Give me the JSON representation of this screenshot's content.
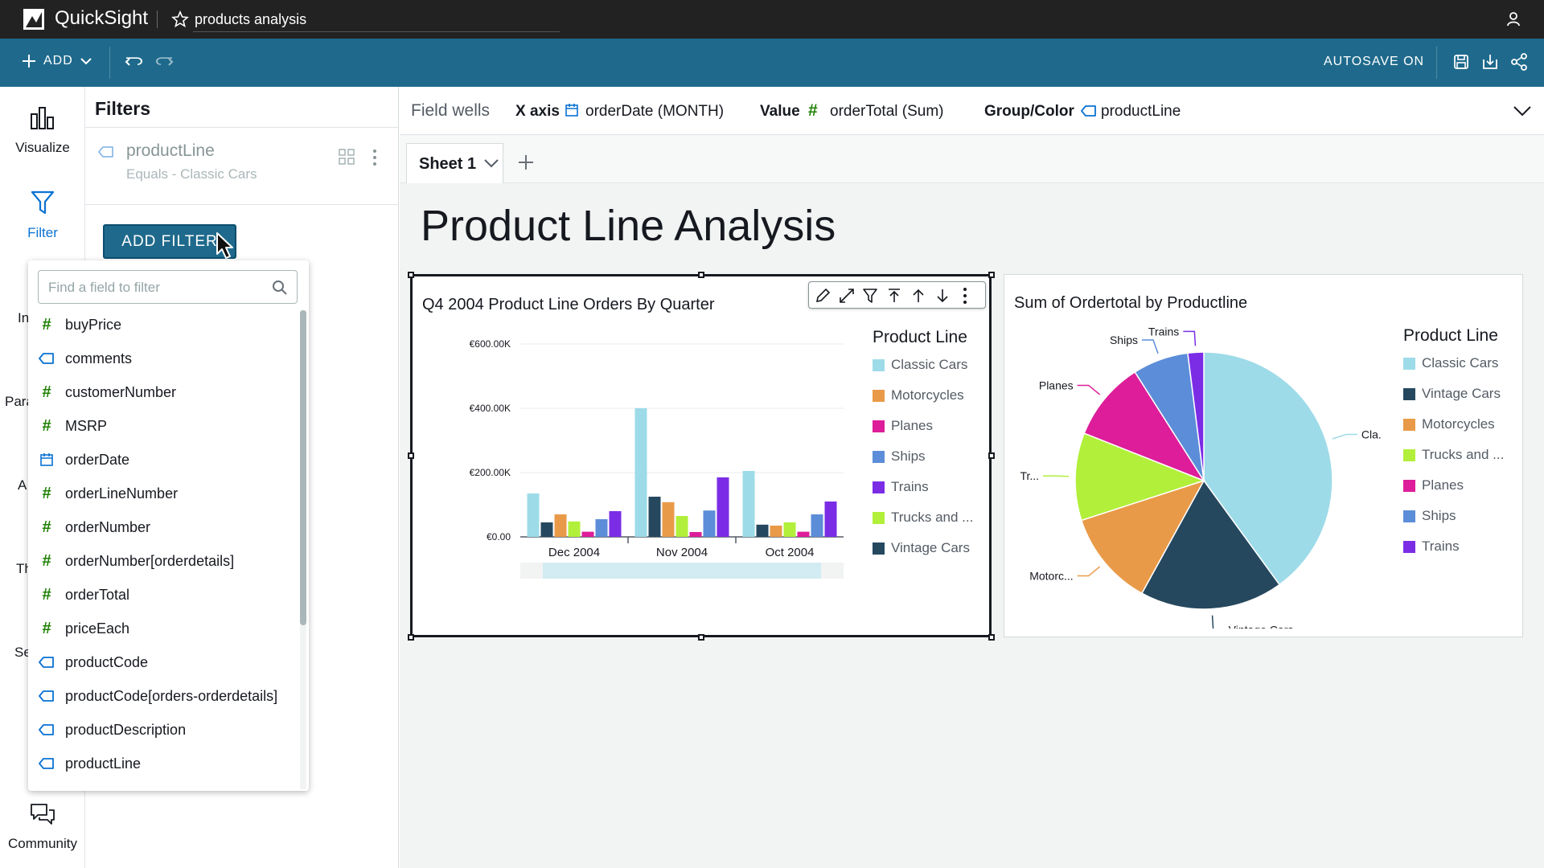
{
  "topbar": {
    "brand": "QuickSight",
    "analysis_name": "products analysis"
  },
  "toolbar": {
    "add_label": "ADD",
    "autosave_label": "AUTOSAVE ON"
  },
  "rail": {
    "visualize": "Visualize",
    "filter": "Filter",
    "partial_labels": [
      "In",
      "Para",
      "A",
      "Th",
      "Se"
    ],
    "community": "Community"
  },
  "filters": {
    "title": "Filters",
    "card": {
      "field": "productLine",
      "condition": "Equals - Classic Cars"
    },
    "add_filter_label": "ADD FILTER",
    "search_placeholder": "Find a field to filter",
    "fields": [
      {
        "name": "buyPrice",
        "type": "number"
      },
      {
        "name": "comments",
        "type": "string"
      },
      {
        "name": "customerNumber",
        "type": "number"
      },
      {
        "name": "MSRP",
        "type": "number"
      },
      {
        "name": "orderDate",
        "type": "date"
      },
      {
        "name": "orderLineNumber",
        "type": "number"
      },
      {
        "name": "orderNumber",
        "type": "number"
      },
      {
        "name": "orderNumber[orderdetails]",
        "type": "number"
      },
      {
        "name": "orderTotal",
        "type": "number"
      },
      {
        "name": "priceEach",
        "type": "number"
      },
      {
        "name": "productCode",
        "type": "string"
      },
      {
        "name": "productCode[orders-orderdetails]",
        "type": "string"
      },
      {
        "name": "productDescription",
        "type": "string"
      },
      {
        "name": "productLine",
        "type": "string"
      }
    ]
  },
  "wells": {
    "label": "Field wells",
    "x_axis_label": "X axis",
    "x_axis_value": "orderDate (MONTH)",
    "value_label": "Value",
    "value_value": "orderTotal (Sum)",
    "group_label": "Group/Color",
    "group_value": "productLine"
  },
  "tabs": {
    "sheet_label": "Sheet 1"
  },
  "sheet_title": "Product Line Analysis",
  "colors": {
    "classic_cars": "#9ddbe8",
    "motorcycles": "#e99a48",
    "planes": "#dd1d99",
    "ships": "#5c8dd8",
    "trains": "#7b2de6",
    "trucks": "#b2ef3a",
    "vintage": "#25485f"
  },
  "chart_data": [
    {
      "type": "bar",
      "title": "Q4 2004 Product Line Orders By Quarter",
      "legend_title": "Product Line",
      "legend_position": "right",
      "categories": [
        "Dec 2004",
        "Nov 2004",
        "Oct 2004"
      ],
      "ytick_labels": [
        "€0.00",
        "€200.00K",
        "€400.00K",
        "€600.00K"
      ],
      "ylim": [
        0,
        600000
      ],
      "series": [
        {
          "name": "Classic Cars",
          "color": "#9ddbe8",
          "values": [
            135000,
            400000,
            205000
          ]
        },
        {
          "name": "Vintage Cars",
          "color": "#25485f",
          "values": [
            45000,
            125000,
            38000
          ]
        },
        {
          "name": "Motorcycles",
          "color": "#e99a48",
          "values": [
            70000,
            108000,
            35000
          ]
        },
        {
          "name": "Trucks and ...",
          "color": "#b2ef3a",
          "values": [
            48000,
            65000,
            45000
          ]
        },
        {
          "name": "Planes",
          "color": "#dd1d99",
          "values": [
            16000,
            15000,
            16000
          ]
        },
        {
          "name": "Ships",
          "color": "#5c8dd8",
          "values": [
            55000,
            82000,
            70000
          ]
        },
        {
          "name": "Trains",
          "color": "#7b2de6",
          "values": [
            80000,
            185000,
            110000
          ]
        }
      ],
      "legend": [
        "Classic Cars",
        "Motorcycles",
        "Planes",
        "Ships",
        "Trains",
        "Trucks and ...",
        "Vintage Cars"
      ]
    },
    {
      "type": "pie",
      "title": "Sum of Ordertotal by Productline",
      "legend_title": "Product Line",
      "legend_position": "right",
      "slices": [
        {
          "label": "Classic Cars",
          "short": "Cla...",
          "color": "#9ddbe8",
          "value": 40
        },
        {
          "label": "Vintage Cars",
          "short": "Vintage Cars",
          "color": "#25485f",
          "value": 18
        },
        {
          "label": "Motorcycles",
          "short": "Motorc...",
          "color": "#e99a48",
          "value": 12
        },
        {
          "label": "Trucks and ...",
          "short": "Tr...",
          "color": "#b2ef3a",
          "value": 11
        },
        {
          "label": "Planes",
          "short": "Planes",
          "color": "#dd1d99",
          "value": 10
        },
        {
          "label": "Ships",
          "short": "Ships",
          "color": "#5c8dd8",
          "value": 7
        },
        {
          "label": "Trains",
          "short": "Trains",
          "color": "#7b2de6",
          "value": 2
        }
      ],
      "legend": [
        "Classic Cars",
        "Vintage Cars",
        "Motorcycles",
        "Trucks and ...",
        "Planes",
        "Ships",
        "Trains"
      ]
    }
  ]
}
